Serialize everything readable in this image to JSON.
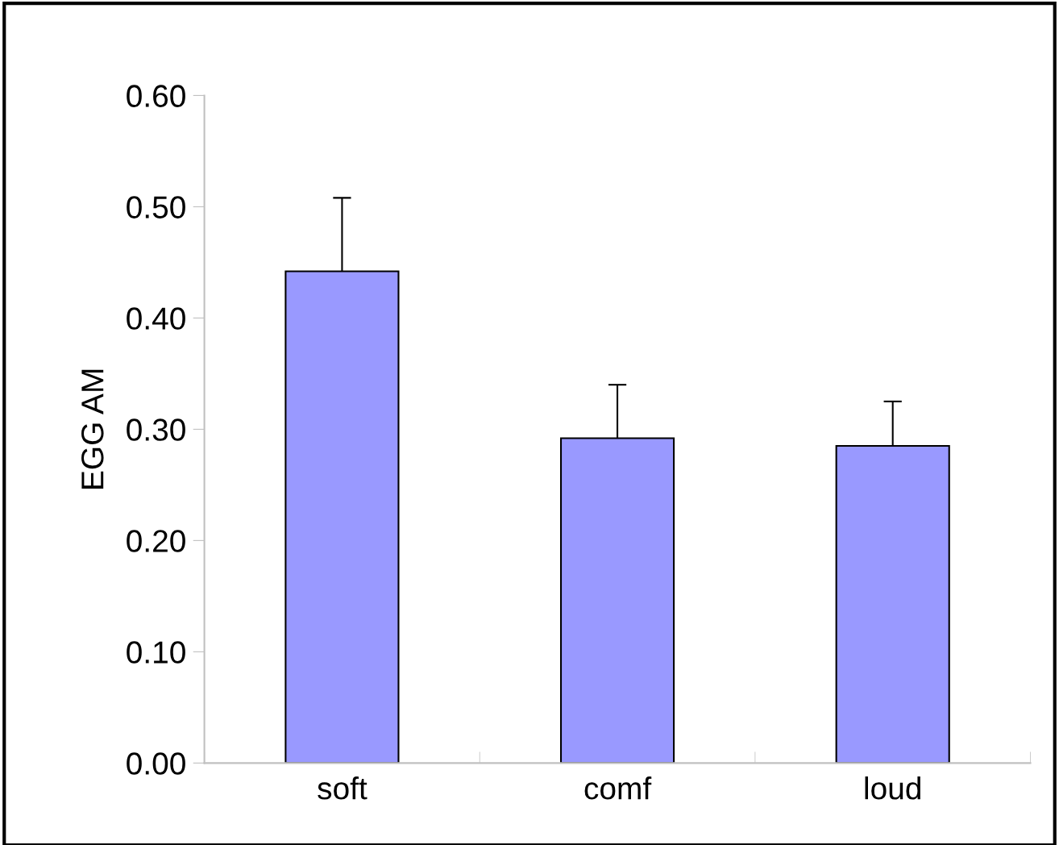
{
  "chart_data": {
    "type": "bar",
    "ylabel": "EGG AM",
    "categories": [
      "soft",
      "comf",
      "loud"
    ],
    "values": [
      0.442,
      0.292,
      0.285
    ],
    "errors": [
      0.066,
      0.048,
      0.04
    ],
    "color": "#9999ff",
    "ylim": [
      0,
      0.6
    ],
    "yticks": [
      {
        "value": 0,
        "label": "0.00"
      },
      {
        "value": 0.1,
        "label": "0.10"
      },
      {
        "value": 0.2,
        "label": "0.20"
      },
      {
        "value": 0.3,
        "label": "0.30"
      },
      {
        "value": 0.4,
        "label": "0.40"
      },
      {
        "value": 0.5,
        "label": "0.50"
      },
      {
        "value": 0.6,
        "label": "0.60"
      }
    ],
    "grid": false
  }
}
